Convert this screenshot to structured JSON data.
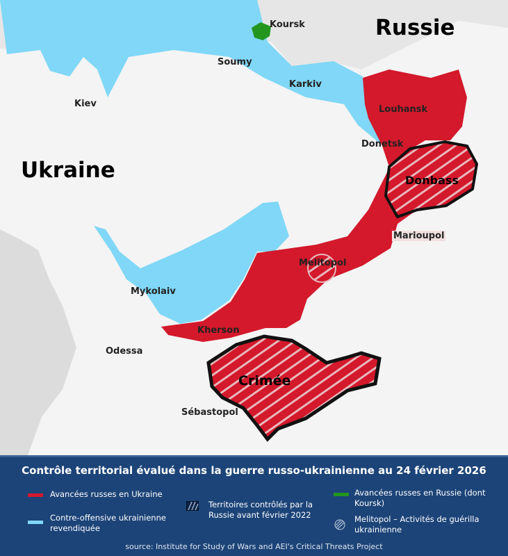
{
  "map": {
    "countries": {
      "russia": "Russie",
      "ukraine": "Ukraine"
    },
    "cities": {
      "koursk": "Koursk",
      "soumy": "Soumy",
      "karkiv": "Karkiv",
      "kiev": "Kiev",
      "louhansk": "Louhansk",
      "donetsk": "Donetsk",
      "marioupol": "Marioupol",
      "melitopol": "Melitopol",
      "mykolaiv": "Mykolaiv",
      "kherson": "Kherson",
      "odessa": "Odessa",
      "sebastopol": "Sébastopol"
    },
    "regions": {
      "donbass": "Donbass",
      "crimee": "Crimée"
    },
    "colors": {
      "russian_advance_ukraine": "#d3192b",
      "ukrainian_counteroffensive": "#80d7f7",
      "russian_advance_russia": "#23961f",
      "land": "#f4f4f4",
      "foreign": "#dcdcdc"
    }
  },
  "legend": {
    "title": "Contrôle territorial évalué dans la guerre russo-ukrainienne au 24 février 2026",
    "items": [
      {
        "label": "Avancées russes en Ukraine",
        "color": "#d3192b"
      },
      {
        "label": "Contre-offensive ukrainienne revendiquée",
        "color": "#80d7f7"
      },
      {
        "label": "Territoires contrôlés par la Russie avant février 2022",
        "icon": "hatch-square-icon"
      },
      {
        "label": "Avancées russes en Russie (dont Koursk)",
        "color": "#23961f"
      },
      {
        "label": "Melitopol – Activités de guérilla ukrainienne",
        "icon": "hatch-circle-icon"
      }
    ],
    "source": "source: Institute for Study of Wars and AEI's Critical Threats Project"
  }
}
